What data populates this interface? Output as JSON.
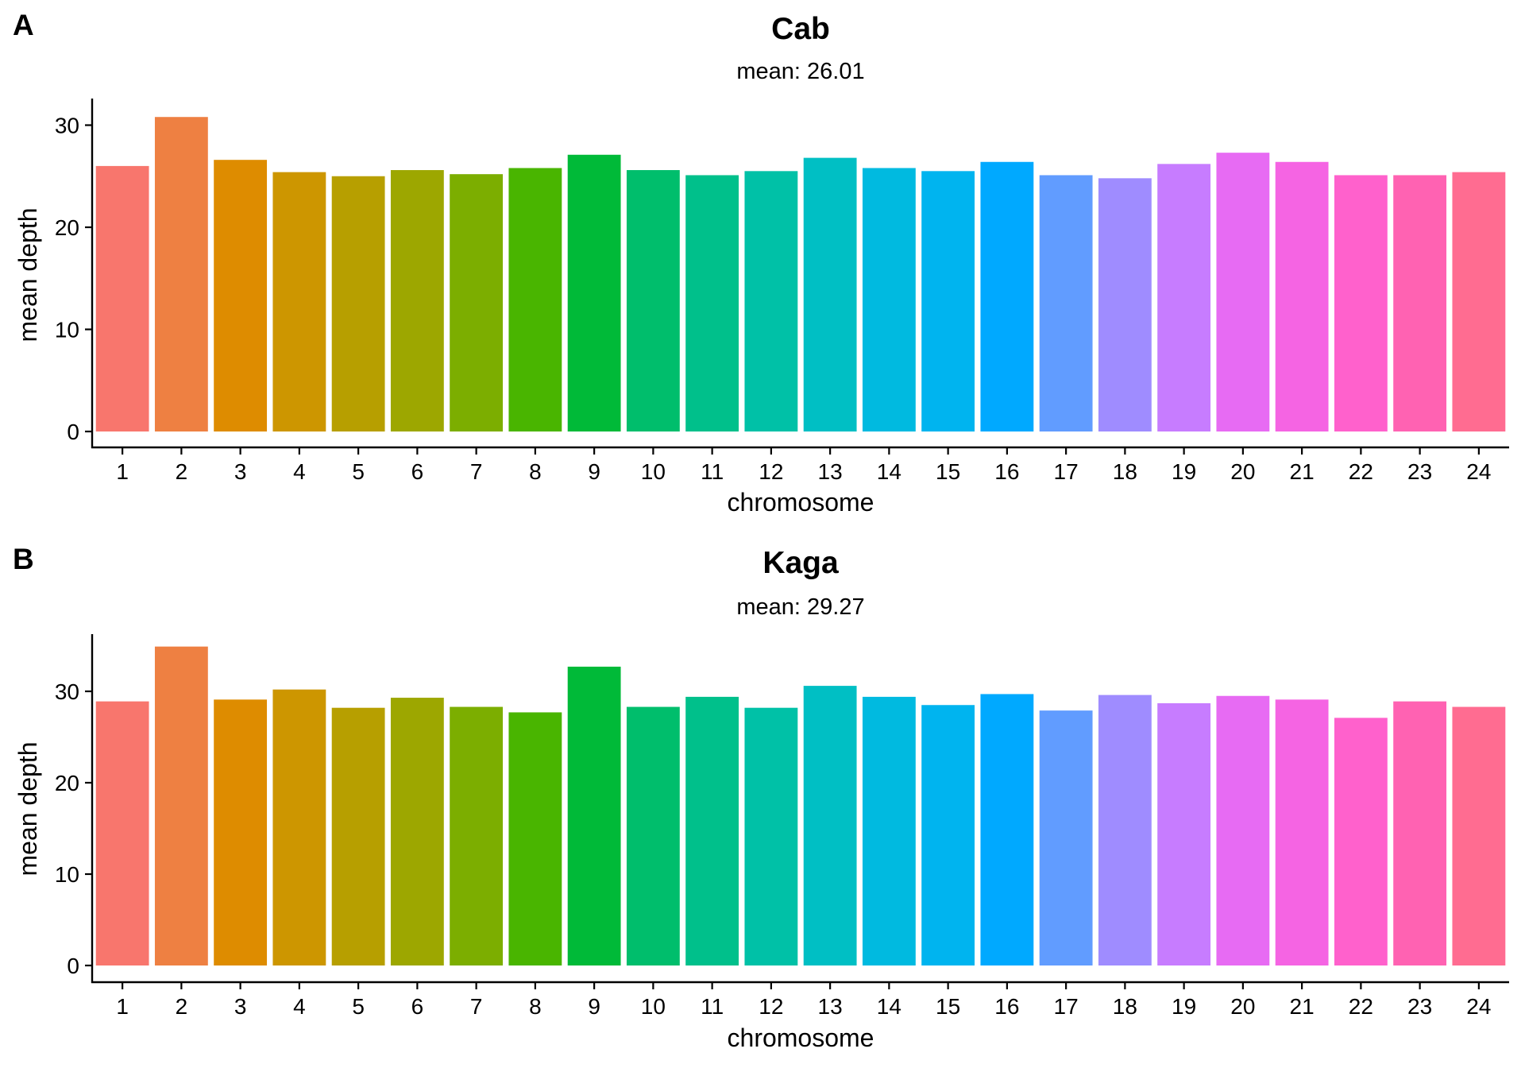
{
  "chart_data": [
    {
      "type": "bar",
      "panel_label": "A",
      "title": "Cab",
      "subtitle": "mean: 26.01",
      "xlabel": "chromosome",
      "ylabel": "mean depth",
      "ylim": [
        0,
        32.5
      ],
      "yticks": [
        0,
        10,
        20,
        30
      ],
      "grid": false,
      "legend": "none",
      "categories": [
        "1",
        "2",
        "3",
        "4",
        "5",
        "6",
        "7",
        "8",
        "9",
        "10",
        "11",
        "12",
        "13",
        "14",
        "15",
        "16",
        "17",
        "18",
        "19",
        "20",
        "21",
        "22",
        "23",
        "24"
      ],
      "values": [
        26.0,
        30.8,
        26.6,
        25.4,
        25.0,
        25.6,
        25.2,
        25.8,
        27.1,
        25.6,
        25.1,
        25.5,
        26.8,
        25.8,
        25.5,
        26.4,
        25.1,
        24.8,
        26.2,
        27.3,
        26.4,
        25.1,
        25.1,
        25.4
      ]
    },
    {
      "type": "bar",
      "panel_label": "B",
      "title": "Kaga",
      "subtitle": "mean: 29.27",
      "xlabel": "chromosome",
      "ylabel": "mean depth",
      "ylim": [
        0,
        36.5
      ],
      "yticks": [
        0,
        10,
        20,
        30
      ],
      "grid": false,
      "legend": "none",
      "categories": [
        "1",
        "2",
        "3",
        "4",
        "5",
        "6",
        "7",
        "8",
        "9",
        "10",
        "11",
        "12",
        "13",
        "14",
        "15",
        "16",
        "17",
        "18",
        "19",
        "20",
        "21",
        "22",
        "23",
        "24"
      ],
      "values": [
        28.9,
        34.9,
        29.1,
        30.2,
        28.2,
        29.3,
        28.3,
        27.7,
        32.7,
        28.3,
        29.4,
        28.2,
        30.6,
        29.4,
        28.5,
        29.7,
        27.9,
        29.6,
        28.7,
        29.5,
        29.1,
        27.1,
        28.9,
        28.3
      ]
    }
  ],
  "colors": [
    "#F8766D",
    "#EE8042",
    "#DE8C00",
    "#CD9600",
    "#B79F00",
    "#9DA700",
    "#7CAE00",
    "#49B500",
    "#00BA38",
    "#00BE6C",
    "#00C08B",
    "#00C1A7",
    "#00BFC4",
    "#00BAE0",
    "#00B4EF",
    "#00A9FF",
    "#619CFF",
    "#9F8CFF",
    "#C77CFF",
    "#E76BF3",
    "#F564E3",
    "#FF61CC",
    "#FF62B2",
    "#FF6C91"
  ]
}
